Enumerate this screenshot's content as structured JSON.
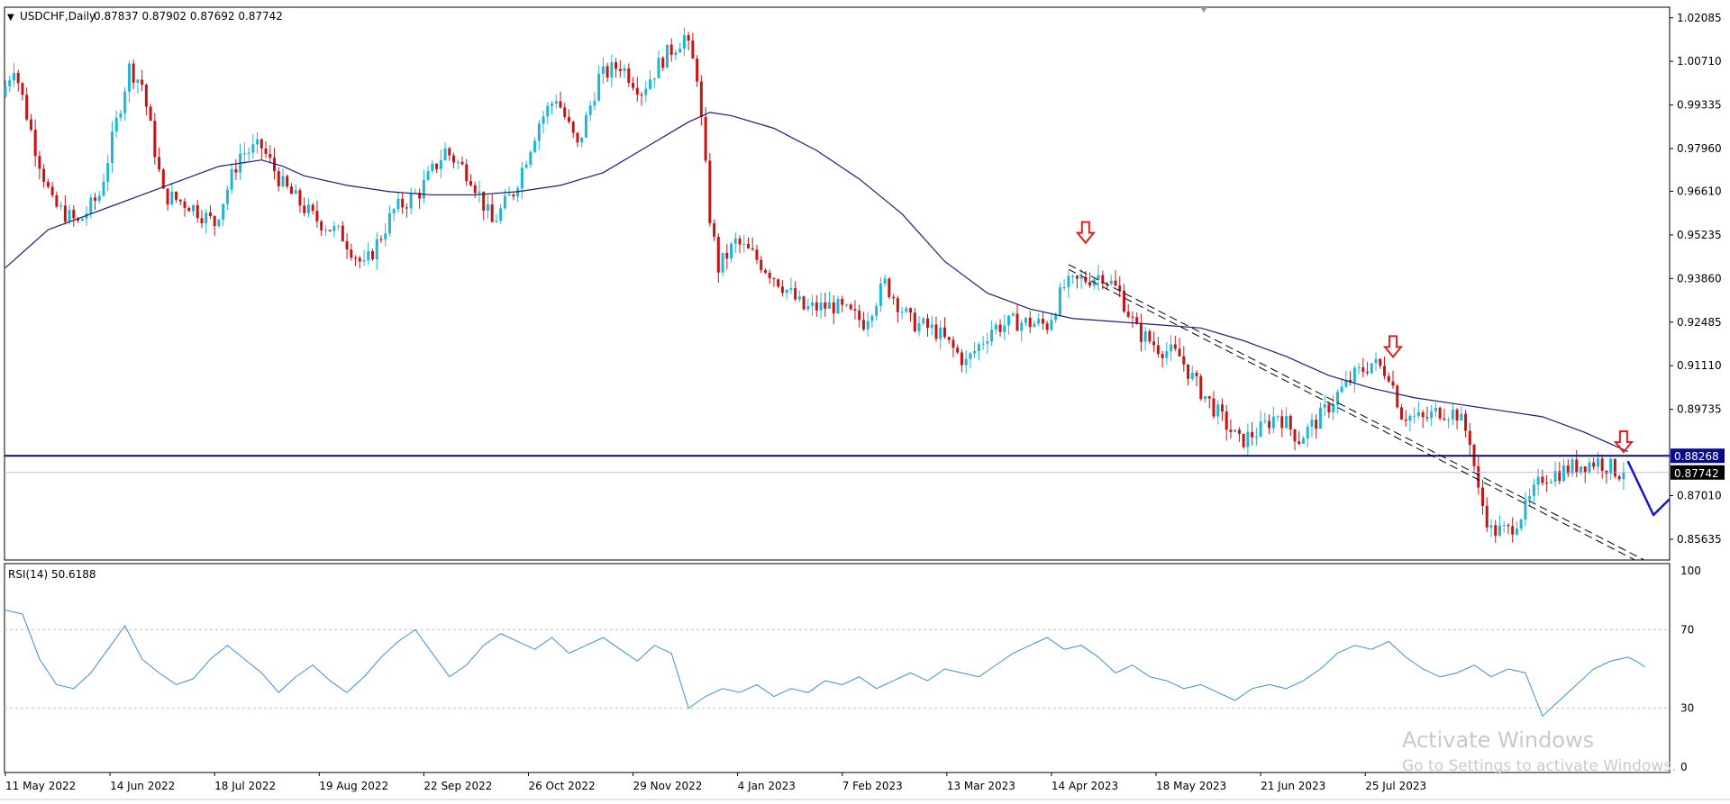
{
  "header": {
    "symbol_label": "USDCHF,Daily",
    "ohlc": "0.87837 0.87902 0.87692 0.87742"
  },
  "chart_data": [
    {
      "type": "candlestick",
      "title": "USDCHF,Daily",
      "ohlc_readout": [
        "0.87837",
        "0.87902",
        "0.87692",
        "0.87742"
      ],
      "ylim": [
        0.8498,
        1.0242
      ],
      "y_ticks": [
        "1.02085",
        "1.00710",
        "0.99335",
        "0.97960",
        "0.96610",
        "0.95235",
        "0.93860",
        "0.92485",
        "0.91110",
        "0.89735",
        "0.87010",
        "0.85635"
      ],
      "x_ticks": [
        "11 May 2022",
        "14 Jun 2022",
        "18 Jul 2022",
        "19 Aug 2022",
        "22 Sep 2022",
        "26 Oct 2022",
        "29 Nov 2022",
        "4 Jan 2023",
        "7 Feb 2023",
        "13 Mar 2023",
        "14 Apr 2023",
        "18 May 2023",
        "21 Jun 2023",
        "25 Jul 2023"
      ],
      "bars_total_axis": 300,
      "price_path": [
        [
          0,
          0.996
        ],
        [
          3,
          1.006
        ],
        [
          8,
          0.98
        ],
        [
          12,
          0.962
        ],
        [
          18,
          0.956
        ],
        [
          23,
          0.965
        ],
        [
          30,
          1.005
        ],
        [
          33,
          1.0
        ],
        [
          38,
          0.965
        ],
        [
          44,
          0.962
        ],
        [
          50,
          0.956
        ],
        [
          56,
          0.978
        ],
        [
          61,
          0.98
        ],
        [
          66,
          0.968
        ],
        [
          73,
          0.958
        ],
        [
          80,
          0.952
        ],
        [
          85,
          0.942
        ],
        [
          92,
          0.96
        ],
        [
          98,
          0.966
        ],
        [
          104,
          0.979
        ],
        [
          110,
          0.971
        ],
        [
          115,
          0.956
        ],
        [
          120,
          0.966
        ],
        [
          126,
          0.988
        ],
        [
          130,
          0.996
        ],
        [
          135,
          0.98
        ],
        [
          140,
          1.002
        ],
        [
          145,
          1.006
        ],
        [
          150,
          0.998
        ],
        [
          155,
          1.008
        ],
        [
          160,
          1.015
        ],
        [
          163,
          1.003
        ],
        [
          166,
          0.958
        ],
        [
          168,
          0.942
        ],
        [
          172,
          0.95
        ],
        [
          176,
          0.946
        ],
        [
          182,
          0.938
        ],
        [
          188,
          0.929
        ],
        [
          195,
          0.93
        ],
        [
          202,
          0.925
        ],
        [
          207,
          0.937
        ],
        [
          213,
          0.925
        ],
        [
          219,
          0.922
        ],
        [
          226,
          0.912
        ],
        [
          232,
          0.923
        ],
        [
          238,
          0.925
        ],
        [
          245,
          0.924
        ],
        [
          249,
          0.936
        ],
        [
          253,
          0.938
        ],
        [
          258,
          0.94
        ],
        [
          262,
          0.934
        ],
        [
          266,
          0.922
        ],
        [
          271,
          0.917
        ],
        [
          276,
          0.914
        ],
        [
          280,
          0.905
        ],
        [
          285,
          0.896
        ],
        [
          290,
          0.887
        ],
        [
          295,
          0.891
        ],
        [
          299,
          0.896
        ]
      ],
      "price_path_2": [
        [
          0,
          0.896
        ],
        [
          5,
          0.888
        ],
        [
          10,
          0.895
        ],
        [
          14,
          0.902
        ],
        [
          18,
          0.908
        ],
        [
          22,
          0.912
        ],
        [
          26,
          0.909
        ],
        [
          29,
          0.896
        ],
        [
          34,
          0.894
        ],
        [
          38,
          0.897
        ],
        [
          42,
          0.896
        ],
        [
          45,
          0.888
        ],
        [
          47,
          0.871
        ],
        [
          50,
          0.859
        ],
        [
          54,
          0.859
        ],
        [
          58,
          0.866
        ],
        [
          62,
          0.876
        ],
        [
          67,
          0.878
        ],
        [
          71,
          0.88
        ],
        [
          75,
          0.881
        ],
        [
          80,
          0.8774
        ]
      ],
      "moving_average": [
        [
          0,
          0.942
        ],
        [
          10,
          0.954
        ],
        [
          20,
          0.959
        ],
        [
          30,
          0.964
        ],
        [
          40,
          0.969
        ],
        [
          50,
          0.974
        ],
        [
          60,
          0.976
        ],
        [
          65,
          0.974
        ],
        [
          70,
          0.971
        ],
        [
          80,
          0.968
        ],
        [
          90,
          0.966
        ],
        [
          100,
          0.965
        ],
        [
          110,
          0.965
        ],
        [
          120,
          0.966
        ],
        [
          130,
          0.968
        ],
        [
          140,
          0.972
        ],
        [
          150,
          0.98
        ],
        [
          160,
          0.988
        ],
        [
          165,
          0.991
        ],
        [
          170,
          0.99
        ],
        [
          180,
          0.986
        ],
        [
          190,
          0.979
        ],
        [
          200,
          0.97
        ],
        [
          210,
          0.959
        ],
        [
          220,
          0.944
        ],
        [
          230,
          0.934
        ],
        [
          240,
          0.929
        ],
        [
          250,
          0.926
        ],
        [
          260,
          0.925
        ],
        [
          270,
          0.924
        ],
        [
          280,
          0.923
        ],
        [
          290,
          0.919
        ],
        [
          300,
          0.914
        ],
        [
          310,
          0.908
        ],
        [
          320,
          0.904
        ],
        [
          330,
          0.901
        ],
        [
          340,
          0.899
        ],
        [
          350,
          0.897
        ],
        [
          360,
          0.895
        ],
        [
          370,
          0.89
        ],
        [
          380,
          0.884
        ]
      ],
      "horizontal_line": 0.88268,
      "current_price": 0.87742,
      "price_labels": [
        "0.88268",
        "0.87742"
      ],
      "trendlines": [
        {
          "style": "dashed",
          "from": [
            249,
            0.943
          ],
          "to": [
            385,
            0.849
          ]
        },
        {
          "style": "dashed",
          "from": [
            249,
            0.9415
          ],
          "to": [
            385,
            0.8475
          ]
        }
      ],
      "markers": [
        {
          "symbol": "down-arrow",
          "x": 253,
          "y": 0.953
        },
        {
          "symbol": "down-arrow",
          "x": 325,
          "y": 0.917
        },
        {
          "symbol": "down-arrow",
          "x": 379,
          "y": 0.887
        }
      ],
      "projection": [
        [
          380,
          0.881
        ],
        [
          386,
          0.864
        ],
        [
          392,
          0.872
        ],
        [
          398,
          0.862
        ]
      ],
      "colors": {
        "up": "#1fb5d6",
        "down": "#c41515",
        "ma": "#1c1c7a",
        "level": "#0a0a7a",
        "projection": "#1414d2",
        "marker": "#e02020"
      }
    },
    {
      "type": "line",
      "title": "RSI(14) 50.6188",
      "ylim": [
        0,
        100
      ],
      "y_ticks": [
        "100",
        "70",
        "30",
        "0"
      ],
      "levels": [
        70,
        30
      ],
      "values": [
        [
          0,
          80
        ],
        [
          4,
          78
        ],
        [
          8,
          55
        ],
        [
          12,
          42
        ],
        [
          16,
          40
        ],
        [
          20,
          48
        ],
        [
          24,
          60
        ],
        [
          28,
          72
        ],
        [
          32,
          55
        ],
        [
          36,
          48
        ],
        [
          40,
          42
        ],
        [
          44,
          45
        ],
        [
          48,
          55
        ],
        [
          52,
          62
        ],
        [
          56,
          55
        ],
        [
          60,
          48
        ],
        [
          64,
          38
        ],
        [
          68,
          46
        ],
        [
          72,
          52
        ],
        [
          76,
          44
        ],
        [
          80,
          38
        ],
        [
          84,
          46
        ],
        [
          88,
          56
        ],
        [
          92,
          64
        ],
        [
          96,
          70
        ],
        [
          100,
          58
        ],
        [
          104,
          46
        ],
        [
          108,
          52
        ],
        [
          112,
          62
        ],
        [
          116,
          68
        ],
        [
          120,
          64
        ],
        [
          124,
          60
        ],
        [
          128,
          66
        ],
        [
          132,
          58
        ],
        [
          136,
          62
        ],
        [
          140,
          66
        ],
        [
          144,
          60
        ],
        [
          148,
          54
        ],
        [
          152,
          62
        ],
        [
          156,
          58
        ],
        [
          160,
          30
        ],
        [
          164,
          36
        ],
        [
          168,
          40
        ],
        [
          172,
          38
        ],
        [
          176,
          42
        ],
        [
          180,
          36
        ],
        [
          184,
          40
        ],
        [
          188,
          38
        ],
        [
          192,
          44
        ],
        [
          196,
          42
        ],
        [
          200,
          46
        ],
        [
          204,
          40
        ],
        [
          208,
          44
        ],
        [
          212,
          48
        ],
        [
          216,
          44
        ],
        [
          220,
          50
        ],
        [
          224,
          48
        ],
        [
          228,
          46
        ],
        [
          232,
          52
        ],
        [
          236,
          58
        ],
        [
          240,
          62
        ],
        [
          244,
          66
        ],
        [
          248,
          60
        ],
        [
          252,
          62
        ],
        [
          256,
          56
        ],
        [
          260,
          48
        ],
        [
          264,
          52
        ],
        [
          268,
          46
        ],
        [
          272,
          44
        ],
        [
          276,
          40
        ],
        [
          280,
          42
        ],
        [
          284,
          38
        ],
        [
          288,
          34
        ],
        [
          292,
          40
        ],
        [
          296,
          42
        ],
        [
          300,
          40
        ],
        [
          304,
          44
        ],
        [
          308,
          50
        ],
        [
          312,
          58
        ],
        [
          316,
          62
        ],
        [
          320,
          60
        ],
        [
          324,
          64
        ],
        [
          328,
          56
        ],
        [
          332,
          50
        ],
        [
          336,
          46
        ],
        [
          340,
          48
        ],
        [
          344,
          52
        ],
        [
          348,
          46
        ],
        [
          352,
          50
        ],
        [
          356,
          48
        ],
        [
          360,
          26
        ],
        [
          364,
          34
        ],
        [
          368,
          42
        ],
        [
          372,
          50
        ],
        [
          376,
          54
        ],
        [
          380,
          56
        ],
        [
          382,
          54
        ],
        [
          384,
          51
        ]
      ],
      "colors": {
        "line": "#3a8fd8"
      }
    }
  ],
  "watermark": {
    "line1": "Activate Windows",
    "line2": "Go to Settings to activate Windows."
  }
}
